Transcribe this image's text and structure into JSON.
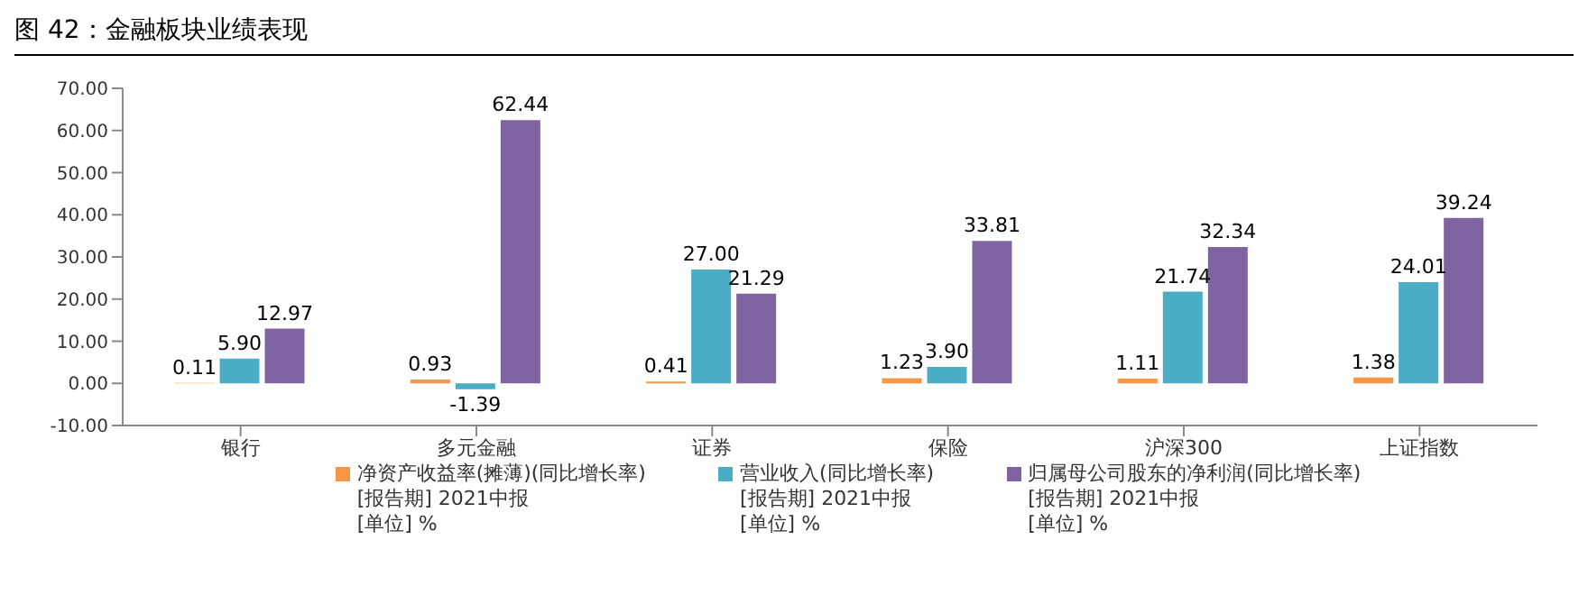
{
  "chart_data": {
    "type": "bar",
    "title": "图 42：金融板块业绩表现",
    "categories": [
      "银行",
      "多元金融",
      "证券",
      "保险",
      "沪深300",
      "上证指数"
    ],
    "series": [
      {
        "name": "净资产收益率(摊薄)(同比增长率)\n[报告期] 2021中报\n[单位] %",
        "color": "#f79646",
        "values": [
          0.11,
          0.93,
          0.41,
          1.23,
          1.11,
          1.38
        ],
        "value_labels": [
          "0.11",
          "0.93",
          "0.41",
          "1.23",
          "1.11",
          "1.38"
        ]
      },
      {
        "name": "营业收入(同比增长率)\n[报告期] 2021中报\n[单位] %",
        "color": "#4bacc6",
        "values": [
          5.9,
          -1.39,
          27.0,
          3.9,
          21.74,
          24.01
        ],
        "value_labels": [
          "5.90",
          "-1.39",
          "27.00",
          "3.90",
          "21.74",
          "24.01"
        ]
      },
      {
        "name": "归属母公司股东的净利润(同比增长率)\n[报告期] 2021中报\n[单位] %",
        "color": "#8064a2",
        "values": [
          12.97,
          62.44,
          21.29,
          33.81,
          32.34,
          39.24
        ],
        "value_labels": [
          "12.97",
          "62.44",
          "21.29",
          "33.81",
          "32.34",
          "39.24"
        ]
      }
    ],
    "ylim": [
      -10,
      70
    ],
    "yticks": [
      {
        "value": -10,
        "label": "-10.00"
      },
      {
        "value": 0,
        "label": "0.00"
      },
      {
        "value": 10,
        "label": "10.00"
      },
      {
        "value": 20,
        "label": "20.00"
      },
      {
        "value": 30,
        "label": "30.00"
      },
      {
        "value": 40,
        "label": "40.00"
      },
      {
        "value": 50,
        "label": "50.00"
      },
      {
        "value": 60,
        "label": "60.00"
      },
      {
        "value": 70,
        "label": "70.00"
      }
    ],
    "grid": false,
    "legend": "bottom"
  }
}
